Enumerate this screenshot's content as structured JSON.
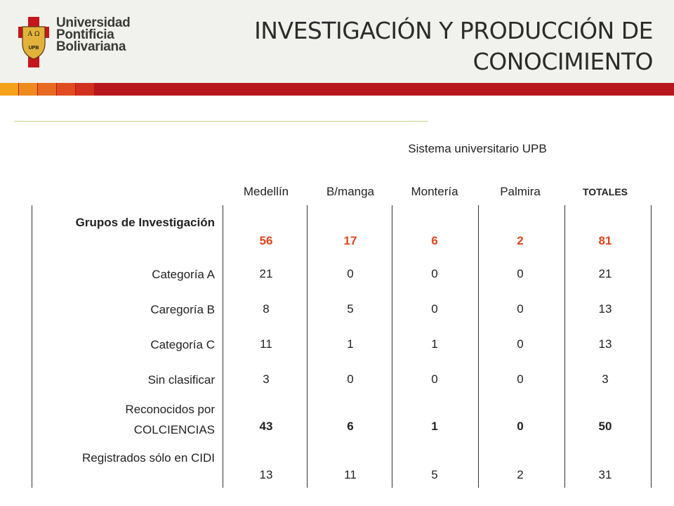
{
  "header": {
    "logo": {
      "line1": "Universidad",
      "line2": "Pontificia",
      "line3": "Bolivariana",
      "shield_top": "A Ω",
      "shield_bottom": "UPB"
    },
    "title_line1": "INVESTIGACIÓN Y PRODUCCIÓN DE",
    "title_line2": "CONOCIMIENTO"
  },
  "colors": {
    "red_band": "#b8161d",
    "accent_squares": [
      "#f4a21a",
      "#ef8a1f",
      "#e86a20",
      "#e04c1f"
    ],
    "highlight": "#e1441c"
  },
  "table": {
    "caption": "Sistema universitario UPB",
    "columns": [
      "Medellín",
      "B/manga",
      "Montería",
      "Palmira",
      "TOTALES"
    ],
    "rows": [
      {
        "label": "Grupos de Investigación",
        "values": [
          "56",
          "17",
          "6",
          "2",
          "81"
        ]
      },
      {
        "label": "Categoría A",
        "values": [
          "21",
          "0",
          "0",
          "0",
          "21"
        ]
      },
      {
        "label": "Caregoría B",
        "values": [
          "8",
          "5",
          "0",
          "0",
          "13"
        ]
      },
      {
        "label": "Categoría C",
        "values": [
          "11",
          "1",
          "1",
          "0",
          "13"
        ]
      },
      {
        "label": "Sin clasificar",
        "values": [
          "3",
          "0",
          "0",
          "0",
          "3"
        ]
      },
      {
        "label": "Reconocidos por COLCIENCIAS",
        "values": [
          "43",
          "6",
          "1",
          "0",
          "50"
        ]
      },
      {
        "label": "Registrados sólo en CIDI",
        "values": [
          "13",
          "11",
          "5",
          "2",
          "31"
        ]
      }
    ]
  }
}
